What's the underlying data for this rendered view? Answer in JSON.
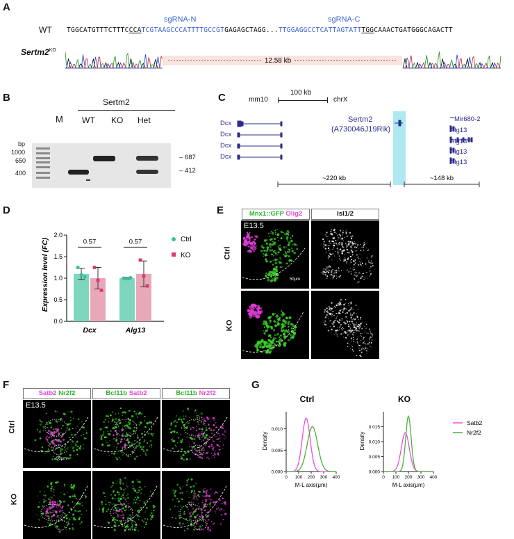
{
  "panels": {
    "A": "A",
    "B": "B",
    "C": "C",
    "D": "D",
    "E": "E",
    "F": "F",
    "G": "G"
  },
  "A": {
    "wt_label": "WT",
    "ko_label": "Sertm2",
    "ko_sup": "KO",
    "sgRNA_N": "sgRNA-N",
    "sgRNA_C": "sgRNA-C",
    "seq_left": "TGGCATGTTTCTTTC",
    "seq_pam1": "CCA",
    "seq_sgN": "TCGTAAGCCCATTTTGCCGT",
    "seq_mid": "GAGAGCTAGG",
    "seq_dots": "...",
    "seq_sgC": "TTGGAGGCCTCATTAGTATT",
    "seq_pam2": "TGG",
    "seq_right": "CAAACTGATGGGCAGACTT",
    "deletion": "12.58 kb"
  },
  "B": {
    "title": "Sertm2",
    "bp": "bp",
    "lanes": [
      "M",
      "WT",
      "KO",
      "Het"
    ],
    "ladder": [
      "1000",
      "650",
      "400"
    ],
    "bands": [
      "687",
      "412"
    ]
  },
  "C": {
    "assembly": "mm10",
    "scale": "100 kb",
    "chrom": "chrX",
    "dcx": [
      "Dcx",
      "Dcx",
      "Dcx",
      "Dcx"
    ],
    "sertm2": "Sertm2",
    "sertm2_alias": "(A730046J19Rik)",
    "mir": "Mir680-2",
    "alg13": [
      "Alg13",
      "Alg13",
      "Alg13",
      "Alg13"
    ],
    "dist1": "~220 kb",
    "dist2": "~148 kb"
  },
  "D": {
    "ylabel": "Expression level (FC)",
    "pvals": [
      "0.57",
      "0.57"
    ],
    "legend": [
      "Ctrl",
      "KO"
    ],
    "colors": {
      "ctrl": "#7fd6bf",
      "ko": "#e8a8b8",
      "ctrl_dot": "#3cbf9a",
      "ko_dot": "#d63a78"
    },
    "chart_data": {
      "type": "bar",
      "categories": [
        "Dcx",
        "Alg13"
      ],
      "ylim": [
        0,
        2.0
      ],
      "yticks": [
        "0.0",
        "0.5",
        "1.0",
        "1.5",
        "2.0"
      ],
      "series": [
        {
          "name": "Ctrl",
          "values": [
            1.1,
            1.0
          ],
          "err": [
            0.13,
            0.02
          ],
          "points": [
            [
              1.25,
              1.08,
              1.03
            ],
            [
              1.0,
              0.99,
              1.01
            ]
          ]
        },
        {
          "name": "KO",
          "values": [
            1.0,
            1.1
          ],
          "err": [
            0.25,
            0.3
          ],
          "points": [
            [
              1.25,
              0.95,
              0.72
            ],
            [
              1.42,
              1.05,
              0.82
            ]
          ]
        }
      ]
    }
  },
  "E": {
    "hdr1_a": "Mnx1::GFP",
    "hdr1_b": "Olig2",
    "hdr2": "Isl1/2",
    "stage": "E13.5",
    "scale": "50μm",
    "rows": [
      "Ctrl",
      "KO"
    ]
  },
  "F": {
    "hdrs": [
      [
        "Satb2",
        "Nr2f2"
      ],
      [
        "Bcl11b",
        "Satb2"
      ],
      [
        "Bcl11b",
        "Nr2f2"
      ]
    ],
    "stage": "E13.5",
    "scale": "50μm",
    "rows": [
      "Ctrl",
      "KO"
    ]
  },
  "G": {
    "titles": [
      "Ctrl",
      "KO"
    ],
    "ylabel": "Density",
    "xlabel": "M-L axis(μm)",
    "legend": [
      "Satb2",
      "Nr2f2"
    ],
    "colors": {
      "satb2": "#ee4de0",
      "nr2f2": "#4bb03c"
    },
    "chart_data": [
      {
        "type": "line",
        "title": "Ctrl",
        "xlim": [
          0,
          400
        ],
        "ylim": [
          0,
          0.014
        ],
        "yticks": [
          "0.000",
          "0.005",
          "0.010"
        ],
        "xticks": [
          "0",
          "100",
          "200",
          "300",
          "400"
        ],
        "series": [
          {
            "name": "Satb2",
            "mean": 160,
            "sd": 32,
            "peak": 0.0125
          },
          {
            "name": "Nr2f2",
            "mean": 210,
            "sd": 42,
            "peak": 0.0105
          }
        ]
      },
      {
        "type": "line",
        "title": "KO",
        "xlim": [
          0,
          400
        ],
        "ylim": [
          0,
          0.02
        ],
        "yticks": [
          "0.000",
          "0.005",
          "0.010",
          "0.015"
        ],
        "xticks": [
          "0",
          "100",
          "200",
          "300",
          "400"
        ],
        "series": [
          {
            "name": "Satb2",
            "mean": 175,
            "sd": 32,
            "peak": 0.013
          },
          {
            "name": "Nr2f2",
            "mean": 200,
            "sd": 22,
            "peak": 0.0185
          }
        ]
      }
    ]
  }
}
